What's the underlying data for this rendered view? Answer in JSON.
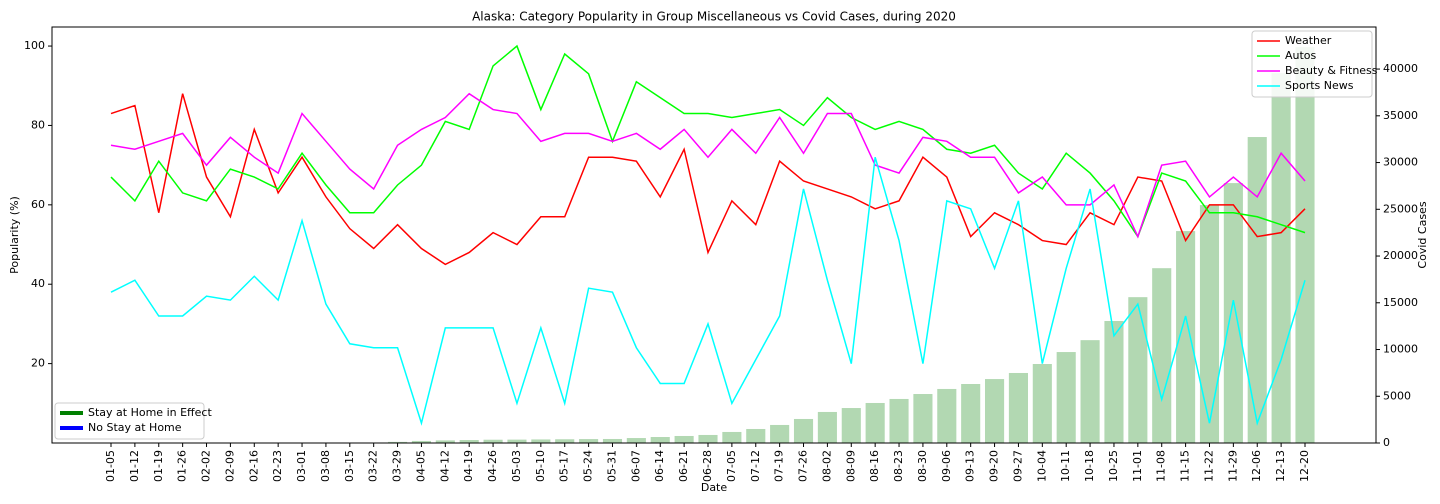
{
  "chart_data": {
    "type": "line",
    "title": "Alaska: Category Popularity in Group Miscellaneous vs Covid Cases, during 2020",
    "x_label": "Date",
    "y_label": "Popularity (%)",
    "y2_label": "Covid Cases",
    "categories": [
      "01-05",
      "01-12",
      "01-19",
      "01-26",
      "02-02",
      "02-09",
      "02-16",
      "02-23",
      "03-01",
      "03-08",
      "03-15",
      "03-22",
      "03-29",
      "04-05",
      "04-12",
      "04-19",
      "04-26",
      "05-03",
      "05-10",
      "05-17",
      "05-24",
      "05-31",
      "06-07",
      "06-14",
      "06-21",
      "06-28",
      "07-05",
      "07-12",
      "07-19",
      "07-26",
      "08-02",
      "08-09",
      "08-16",
      "08-23",
      "08-30",
      "09-06",
      "09-13",
      "09-20",
      "09-27",
      "10-04",
      "10-11",
      "10-18",
      "10-25",
      "11-01",
      "11-08",
      "11-15",
      "11-22",
      "11-29",
      "12-06",
      "12-13",
      "12-20"
    ],
    "series": [
      {
        "name": "Weather",
        "color": "#ff0000",
        "values": [
          83,
          85,
          58,
          88,
          67,
          57,
          79,
          63,
          72,
          62,
          54,
          49,
          55,
          49,
          45,
          48,
          53,
          50,
          57,
          57,
          72,
          72,
          71,
          62,
          74,
          48,
          61,
          55,
          71,
          66,
          64,
          62,
          59,
          61,
          72,
          67,
          52,
          58,
          55,
          51,
          50,
          58,
          55,
          67,
          66,
          51,
          60,
          60,
          52,
          53,
          59
        ]
      },
      {
        "name": "Autos",
        "color": "#00ff00",
        "values": [
          67,
          61,
          71,
          63,
          61,
          69,
          67,
          64,
          73,
          65,
          58,
          58,
          65,
          70,
          81,
          79,
          95,
          100,
          84,
          98,
          93,
          76,
          91,
          87,
          83,
          83,
          82,
          83,
          84,
          80,
          87,
          82,
          79,
          81,
          79,
          74,
          73,
          75,
          68,
          64,
          73,
          68,
          61,
          52,
          68,
          66,
          58,
          58,
          57,
          55,
          53
        ]
      },
      {
        "name": "Beauty & Fitness",
        "color": "#ff00ff",
        "values": [
          75,
          74,
          76,
          78,
          70,
          77,
          72,
          68,
          83,
          76,
          69,
          64,
          75,
          79,
          82,
          88,
          84,
          83,
          76,
          78,
          78,
          76,
          78,
          74,
          79,
          72,
          79,
          73,
          82,
          73,
          83,
          83,
          70,
          68,
          77,
          76,
          72,
          72,
          63,
          67,
          60,
          60,
          65,
          52,
          70,
          71,
          62,
          67,
          62,
          73,
          66
        ]
      },
      {
        "name": "Sports News",
        "color": "#00ffff",
        "values": [
          38,
          41,
          32,
          32,
          37,
          36,
          42,
          36,
          56,
          35,
          25,
          24,
          24,
          5,
          29,
          29,
          29,
          10,
          29,
          10,
          39,
          38,
          24,
          15,
          15,
          30,
          10,
          21,
          32,
          64,
          41,
          20,
          72,
          51,
          20,
          61,
          59,
          44,
          61,
          20,
          44,
          64,
          27,
          35,
          11,
          32,
          5,
          36,
          5,
          21,
          41
        ]
      }
    ],
    "bars": {
      "color": "#b2d8b2",
      "axis": "y2",
      "values": [
        0,
        0,
        0,
        0,
        0,
        0,
        0,
        0,
        0,
        0,
        0,
        30,
        120,
        220,
        280,
        320,
        350,
        360,
        380,
        400,
        420,
        430,
        530,
        640,
        750,
        860,
        1180,
        1500,
        1930,
        2570,
        3320,
        3740,
        4280,
        4710,
        5240,
        5780,
        6310,
        6840,
        7490,
        8450,
        9730,
        11000,
        13050,
        15600,
        18700,
        22670,
        25450,
        27800,
        32730,
        39570,
        42350
      ]
    },
    "ylim": [
      0,
      104.8
    ],
    "yticks": [
      20,
      40,
      60,
      80,
      100
    ],
    "y2lim": [
      0,
      44500
    ],
    "y2ticks": [
      0,
      5000,
      10000,
      15000,
      20000,
      25000,
      30000,
      35000,
      40000
    ],
    "legend": "upper right",
    "extra_legend": [
      {
        "name": "Stay at Home in Effect",
        "color": "#008000"
      },
      {
        "name": "No Stay at Home",
        "color": "#0000ff"
      }
    ],
    "extra_legend_position": "lower left"
  }
}
